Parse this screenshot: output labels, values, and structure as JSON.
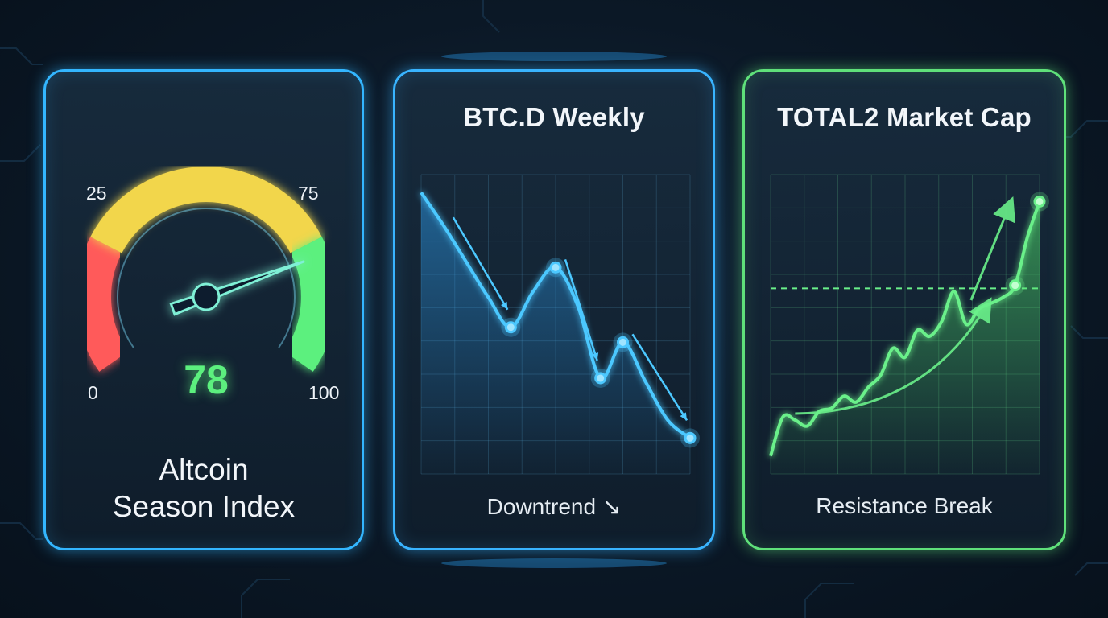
{
  "colors": {
    "accent_blue": "#39b4ff",
    "accent_green": "#5fe07a",
    "gauge_red": "#ff5a5a",
    "gauge_yellow": "#f2d64b",
    "gauge_green": "#5cf07e"
  },
  "gauge": {
    "value": "78",
    "value_num": 78,
    "min": 0,
    "max": 100,
    "ticks": {
      "t0": "0",
      "t25": "25",
      "t75": "75",
      "t100": "100"
    },
    "label_line1": "Altcoin",
    "label_line2": "Season Index"
  },
  "btcd": {
    "title": "BTC.D Weekly",
    "caption": "Downtrend ↘"
  },
  "total2": {
    "title": "TOTAL2 Market Cap",
    "caption": "Resistance Break"
  },
  "chart_data": [
    {
      "type": "gauge",
      "title": "Altcoin Season Index",
      "value": 78,
      "range": [
        0,
        100
      ],
      "bands": [
        {
          "from": 0,
          "to": 25,
          "color": "#ff5a5a"
        },
        {
          "from": 25,
          "to": 75,
          "color": "#f2d64b"
        },
        {
          "from": 75,
          "to": 100,
          "color": "#5cf07e"
        }
      ],
      "tick_labels": [
        "0",
        "25",
        "75",
        "100"
      ]
    },
    {
      "type": "line",
      "title": "BTC.D Weekly",
      "annotation": "Downtrend ↘",
      "ylim": [
        0,
        10
      ],
      "grid": true,
      "x": [
        0,
        1,
        2,
        3,
        4,
        5,
        6,
        7,
        8,
        9,
        10,
        11,
        12
      ],
      "y": [
        9.4,
        8.3,
        7.1,
        5.9,
        4.9,
        6.1,
        6.9,
        5.6,
        3.2,
        4.4,
        3.1,
        1.8,
        1.2
      ],
      "highlight_indices": [
        4,
        6,
        8,
        9,
        12
      ]
    },
    {
      "type": "area",
      "title": "TOTAL2 Market Cap",
      "annotation": "Resistance Break",
      "ylim": [
        0,
        10
      ],
      "grid": true,
      "resistance_level": 6.2,
      "x": [
        0,
        1,
        2,
        3,
        4,
        5,
        6,
        7,
        8,
        9,
        10,
        11,
        12,
        13,
        14,
        15,
        16,
        17,
        18,
        19,
        20,
        21,
        22
      ],
      "y": [
        0.6,
        1.9,
        1.8,
        1.6,
        2.1,
        2.2,
        2.6,
        2.4,
        2.9,
        3.3,
        4.2,
        3.9,
        4.8,
        4.6,
        5.1,
        6.1,
        5.0,
        5.5,
        5.7,
        5.9,
        6.3,
        7.9,
        9.1
      ],
      "highlight_indices": [
        20,
        22
      ]
    }
  ]
}
